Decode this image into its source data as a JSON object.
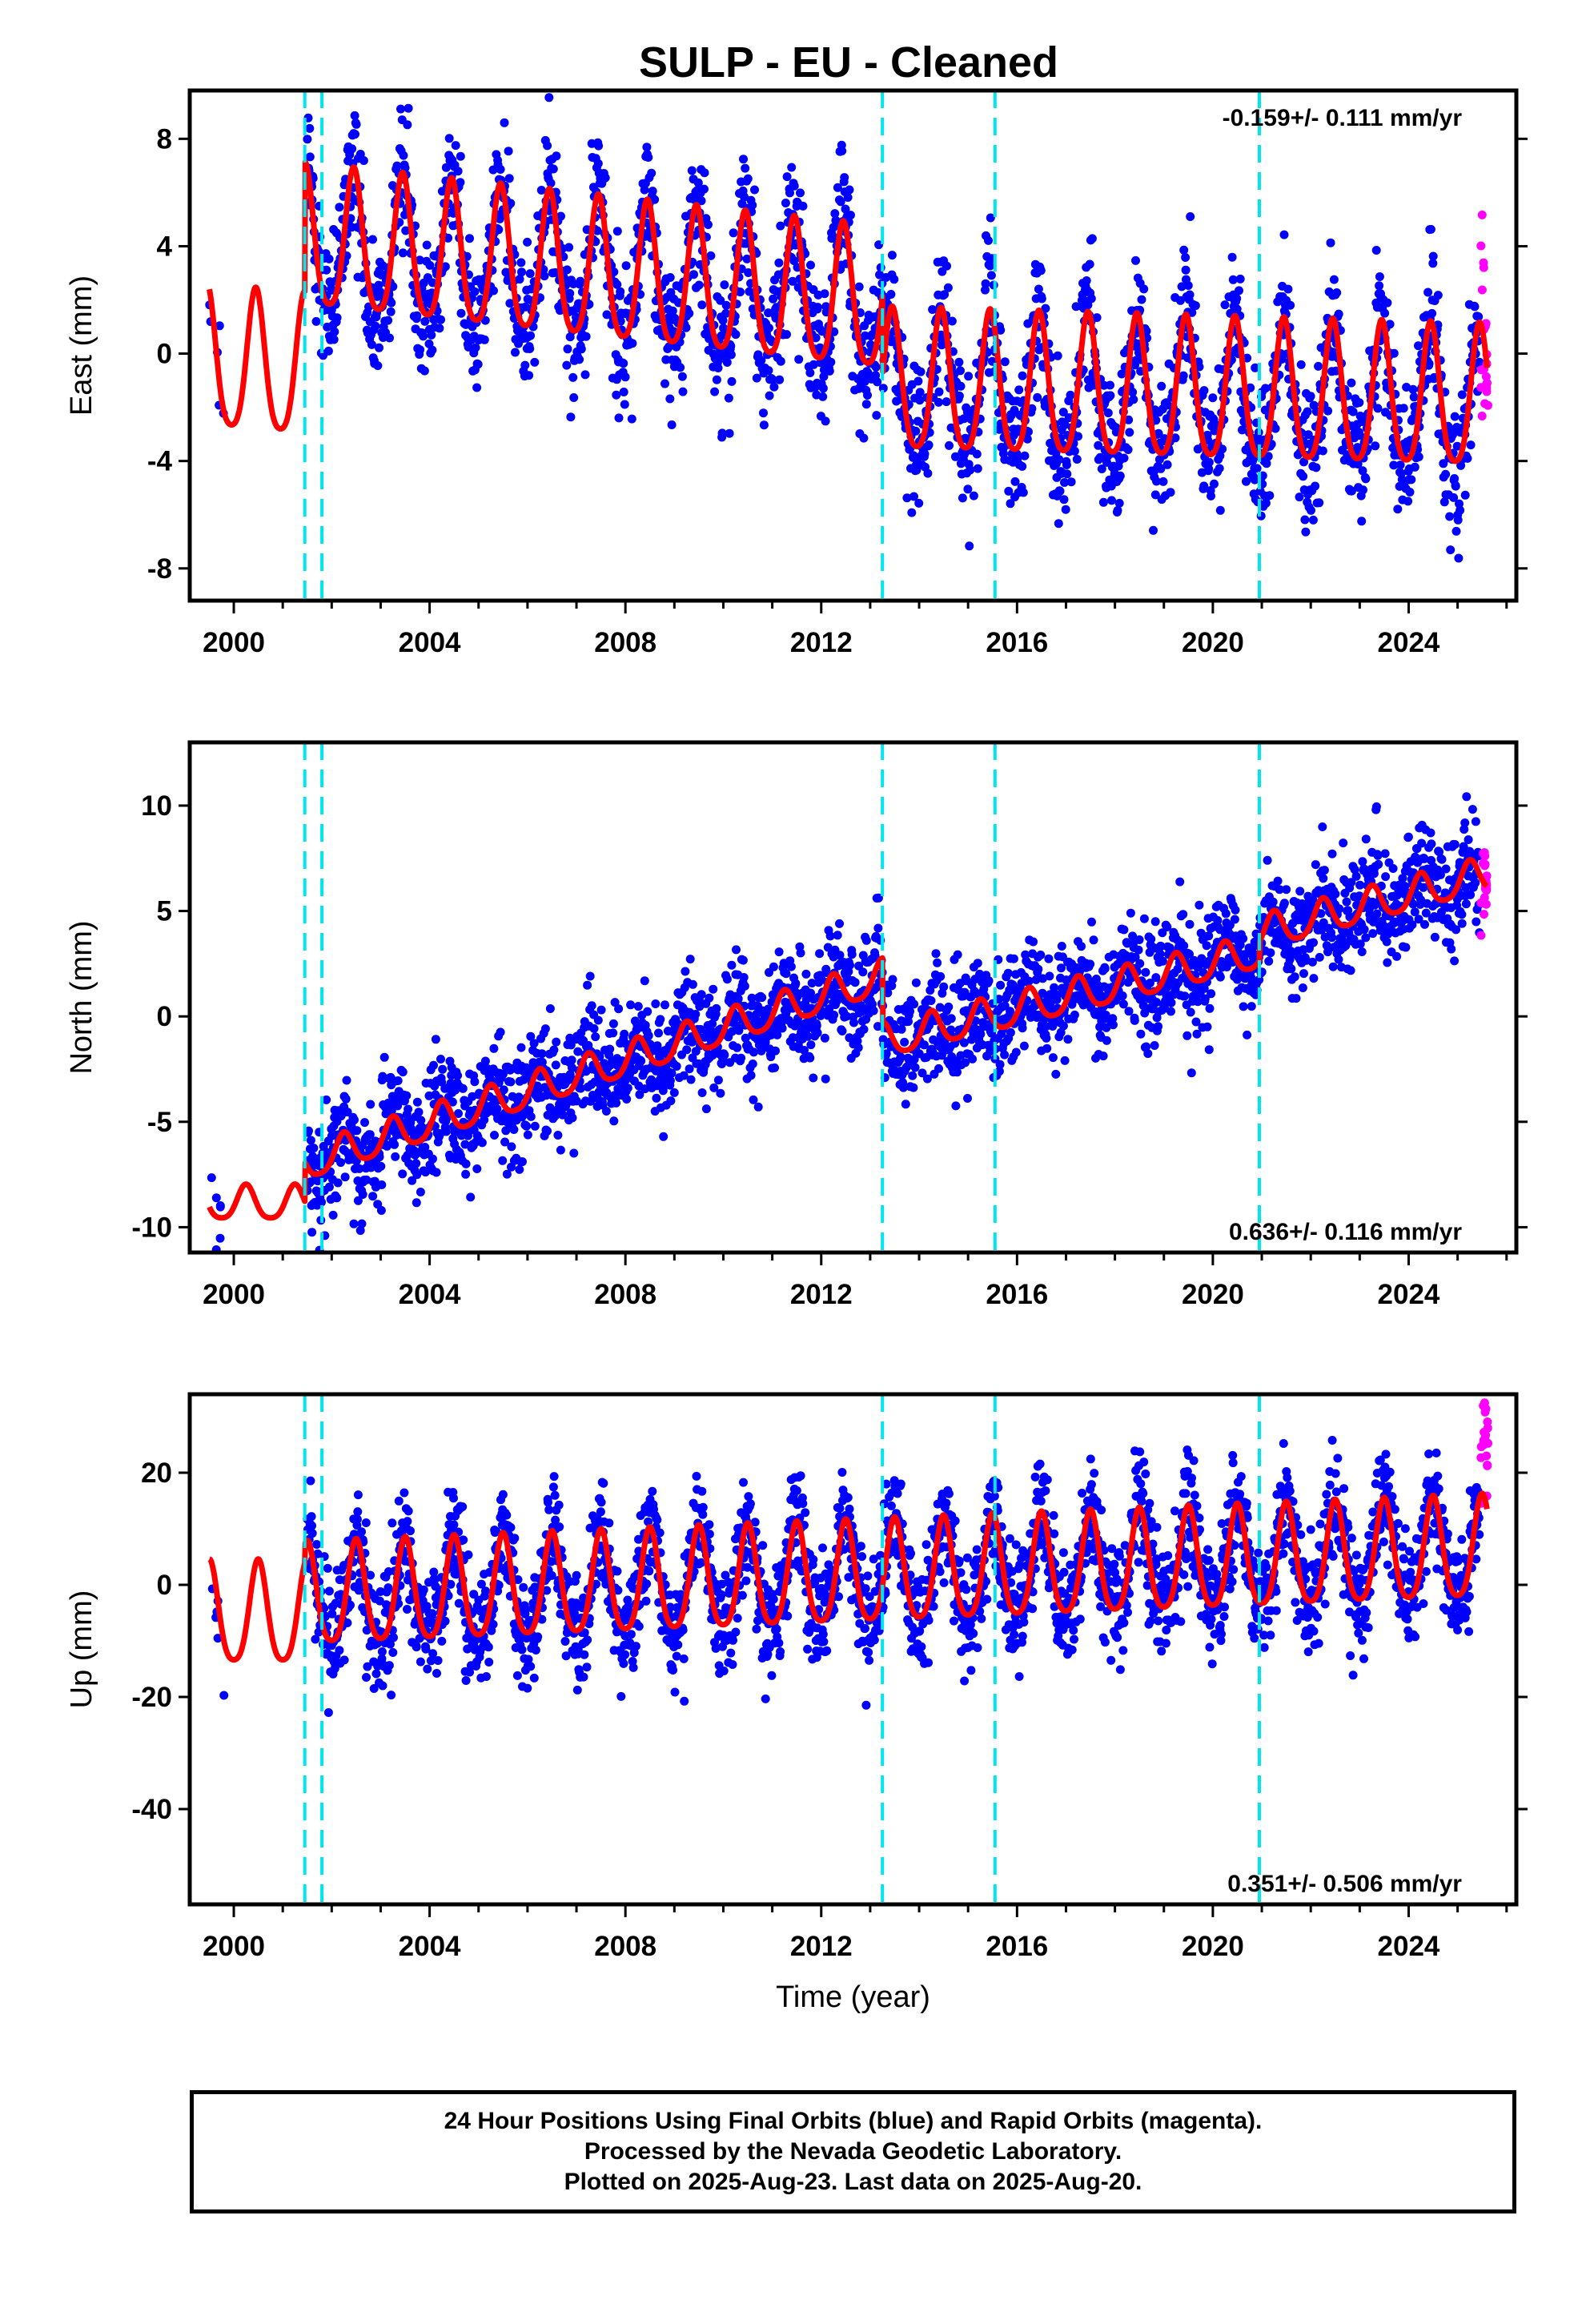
{
  "chart_data": [
    {
      "type": "scatter",
      "title": "SULP  - EU - Cleaned",
      "ylabel": "East (mm)",
      "xlabel": "",
      "xlim": [
        1999.1,
        2026.2
      ],
      "ylim": [
        -9.2,
        9.8
      ],
      "x_ticks": [
        "2000",
        "2004",
        "2008",
        "2012",
        "2016",
        "2020",
        "2024"
      ],
      "y_ticks": [
        "-8",
        "-4",
        "0",
        "4",
        "8"
      ],
      "y_tick_values": [
        -8,
        -4,
        0,
        4,
        8
      ],
      "rate_text": "-0.159+/- 0.111 mm/yr",
      "rate_position": "top-right",
      "offset_lines_x": [
        2001.45,
        2001.8,
        2013.25,
        2015.55,
        2020.95
      ],
      "series": [
        {
          "name": "Final Orbits (blue)",
          "color": "#0000ff"
        },
        {
          "name": "Rapid Orbits (magenta)",
          "color": "#ff00ff"
        },
        {
          "name": "Model fit",
          "color": "#ff0000"
        }
      ],
      "model": {
        "segments": [
          {
            "x_start": 1999.5,
            "x_end": 2001.45,
            "mean": -0.6,
            "slope": -0.15,
            "amplitude": 2.6
          },
          {
            "x_start": 2001.45,
            "x_end": 2013.25,
            "mean": 2.9,
            "slope": -0.2,
            "amplitude": 2.6
          },
          {
            "x_start": 2013.25,
            "x_end": 2025.6,
            "mean": -1.6,
            "slope": -0.05,
            "amplitude": 2.6
          }
        ],
        "phase_peak_fraction": 0.45
      },
      "noise_sd": 1.3
    },
    {
      "type": "scatter",
      "title": "",
      "ylabel": "North (mm)",
      "xlabel": "",
      "xlim": [
        1999.1,
        2026.2
      ],
      "ylim": [
        -11.2,
        13.0
      ],
      "x_ticks": [
        "2000",
        "2004",
        "2008",
        "2012",
        "2016",
        "2020",
        "2024"
      ],
      "y_ticks": [
        "-10",
        "-5",
        "0",
        "5",
        "10"
      ],
      "y_tick_values": [
        -10,
        -5,
        0,
        5,
        10
      ],
      "rate_text": "0.636+/- 0.116 mm/yr",
      "rate_position": "bottom-right",
      "offset_lines_x": [
        2001.45,
        2001.8,
        2013.25,
        2015.55,
        2020.95
      ],
      "series": [
        {
          "name": "Final Orbits (blue)",
          "color": "#0000ff"
        },
        {
          "name": "Rapid Orbits (magenta)",
          "color": "#ff00ff"
        },
        {
          "name": "Model fit",
          "color": "#ff0000"
        }
      ],
      "model": {
        "segments": [
          {
            "x_start": 1999.5,
            "x_end": 2001.45,
            "mean": -8.9,
            "slope": 0.0,
            "amplitude": 0.8
          },
          {
            "x_start": 2001.45,
            "x_end": 2013.25,
            "mean": -2.6,
            "slope": 0.75,
            "amplitude": 0.8
          },
          {
            "x_start": 2013.25,
            "x_end": 2020.95,
            "mean": 0.9,
            "slope": 0.55,
            "amplitude": 0.8
          },
          {
            "x_start": 2020.95,
            "x_end": 2025.6,
            "mean": 5.3,
            "slope": 0.6,
            "amplitude": 0.8
          }
        ],
        "phase_peak_fraction": 0.25
      },
      "noise_sd": 1.3
    },
    {
      "type": "scatter",
      "title": "",
      "ylabel": "Up (mm)",
      "xlabel": "Time (year)",
      "xlim": [
        1999.1,
        2026.2
      ],
      "ylim": [
        -57,
        34
      ],
      "x_ticks": [
        "2000",
        "2004",
        "2008",
        "2012",
        "2016",
        "2020",
        "2024"
      ],
      "y_ticks": [
        "-40",
        "-20",
        "0",
        "20"
      ],
      "y_tick_values": [
        -40,
        -20,
        0,
        20
      ],
      "rate_text": "0.351+/- 0.506 mm/yr",
      "rate_position": "bottom-right",
      "offset_lines_x": [
        2001.45,
        2001.8,
        2013.25,
        2015.55,
        2020.95
      ],
      "series": [
        {
          "name": "Final Orbits (blue)",
          "color": "#0000ff"
        },
        {
          "name": "Rapid Orbits (magenta)",
          "color": "#ff00ff"
        },
        {
          "name": "Model fit",
          "color": "#ff0000"
        }
      ],
      "model": {
        "segments": [
          {
            "x_start": 1999.5,
            "x_end": 2001.45,
            "mean": -6.0,
            "slope": 0.0,
            "amplitude": 9.0
          },
          {
            "x_start": 2001.45,
            "x_end": 2025.6,
            "mean": 1.5,
            "slope": 0.35,
            "amplitude": 9.0
          }
        ],
        "phase_peak_fraction": 0.5
      },
      "noise_sd": 5.0
    }
  ],
  "footer": {
    "line1": "24 Hour Positions Using Final Orbits (blue) and Rapid Orbits (magenta).",
    "line2": "Processed by the Nevada Geodetic Laboratory.",
    "line3": "Plotted on 2025-Aug-23. Last data on 2025-Aug-20."
  },
  "colors": {
    "final_orbits": "#0000ff",
    "rapid_orbits": "#ff00ff",
    "model": "#ff0000",
    "offset_lines": "#00e5ee",
    "frame": "#000000"
  }
}
